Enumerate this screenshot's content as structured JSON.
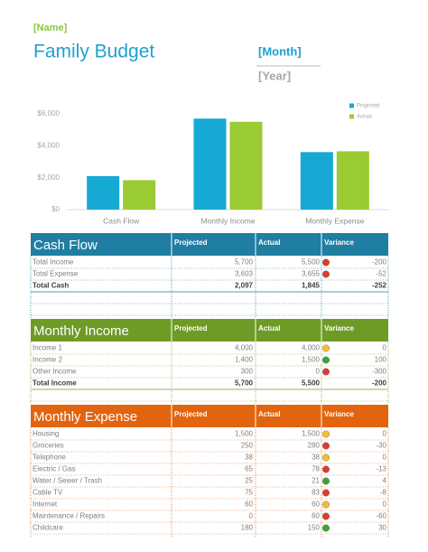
{
  "header": {
    "name": "[Name]",
    "title": "Family Budget",
    "month": "[Month]",
    "year": "[Year]"
  },
  "chart_data": {
    "type": "bar",
    "categories": [
      "Cash Flow",
      "Monthly Income",
      "Monthly Expense"
    ],
    "series": [
      {
        "name": "Projected",
        "color": "#16a9d4",
        "values": [
          2097,
          5700,
          3603
        ]
      },
      {
        "name": "Actual",
        "color": "#9bcb33",
        "values": [
          1845,
          5500,
          3655
        ]
      }
    ],
    "ylim": [
      0,
      6000
    ],
    "yticks": [
      {
        "value": 0,
        "label": "$0"
      },
      {
        "value": 2000,
        "label": "$2,000"
      },
      {
        "value": 4000,
        "label": "$4,000"
      },
      {
        "value": 6000,
        "label": "$6,000"
      }
    ],
    "legend": "upper right",
    "grid": false
  },
  "sections": [
    {
      "title": "Cash Flow",
      "color": "#1f7ea1",
      "columns": [
        "Projected",
        "Actual",
        "Variance"
      ],
      "blank_rows": 2,
      "rows": [
        {
          "label": "Total Income",
          "projected": "5,700",
          "actual": "5,500",
          "variance": "-200",
          "indicator": "#e0392e",
          "bold": false
        },
        {
          "label": "Total Expense",
          "projected": "3,603",
          "actual": "3,655",
          "variance": "-52",
          "indicator": "#e0392e",
          "bold": false
        },
        {
          "label": "Total Cash",
          "projected": "2,097",
          "actual": "1,845",
          "variance": "-252",
          "indicator": null,
          "bold": true
        }
      ]
    },
    {
      "title": "Monthly Income",
      "color": "#6e9b26",
      "columns": [
        "Projected",
        "Actual",
        "Variance"
      ],
      "blank_rows": 1,
      "rows": [
        {
          "label": "Income 1",
          "projected": "4,000",
          "actual": "4,000",
          "variance": "0",
          "indicator": "#f2c02c",
          "bold": false
        },
        {
          "label": "Income 2",
          "projected": "1,400",
          "actual": "1,500",
          "variance": "100",
          "indicator": "#3aa53a",
          "bold": false
        },
        {
          "label": "Other Income",
          "projected": "300",
          "actual": "0",
          "variance": "-300",
          "indicator": "#e0392e",
          "bold": false
        },
        {
          "label": "Total Income",
          "projected": "5,700",
          "actual": "5,500",
          "variance": "-200",
          "indicator": null,
          "bold": true
        }
      ]
    },
    {
      "title": "Monthly Expense",
      "color": "#e2640f",
      "columns": [
        "Projected",
        "Actual",
        "Variance"
      ],
      "blank_rows": 0,
      "rows": [
        {
          "label": "Housing",
          "projected": "1,500",
          "actual": "1,500",
          "variance": "0",
          "indicator": "#f2c02c",
          "bold": false
        },
        {
          "label": "Groceries",
          "projected": "250",
          "actual": "280",
          "variance": "-30",
          "indicator": "#e0392e",
          "bold": false
        },
        {
          "label": "Telephone",
          "projected": "38",
          "actual": "38",
          "variance": "0",
          "indicator": "#f2c02c",
          "bold": false
        },
        {
          "label": "Electric / Gas",
          "projected": "65",
          "actual": "78",
          "variance": "-13",
          "indicator": "#e0392e",
          "bold": false
        },
        {
          "label": "Water / Sewer / Trash",
          "projected": "25",
          "actual": "21",
          "variance": "4",
          "indicator": "#3aa53a",
          "bold": false
        },
        {
          "label": "Cable TV",
          "projected": "75",
          "actual": "83",
          "variance": "-8",
          "indicator": "#e0392e",
          "bold": false
        },
        {
          "label": "Internet",
          "projected": "60",
          "actual": "60",
          "variance": "0",
          "indicator": "#f2c02c",
          "bold": false
        },
        {
          "label": "Maintenance / Repairs",
          "projected": "0",
          "actual": "60",
          "variance": "-60",
          "indicator": "#e0392e",
          "bold": false
        },
        {
          "label": "Childcare",
          "projected": "180",
          "actual": "150",
          "variance": "30",
          "indicator": "#3aa53a",
          "bold": false
        }
      ]
    }
  ]
}
